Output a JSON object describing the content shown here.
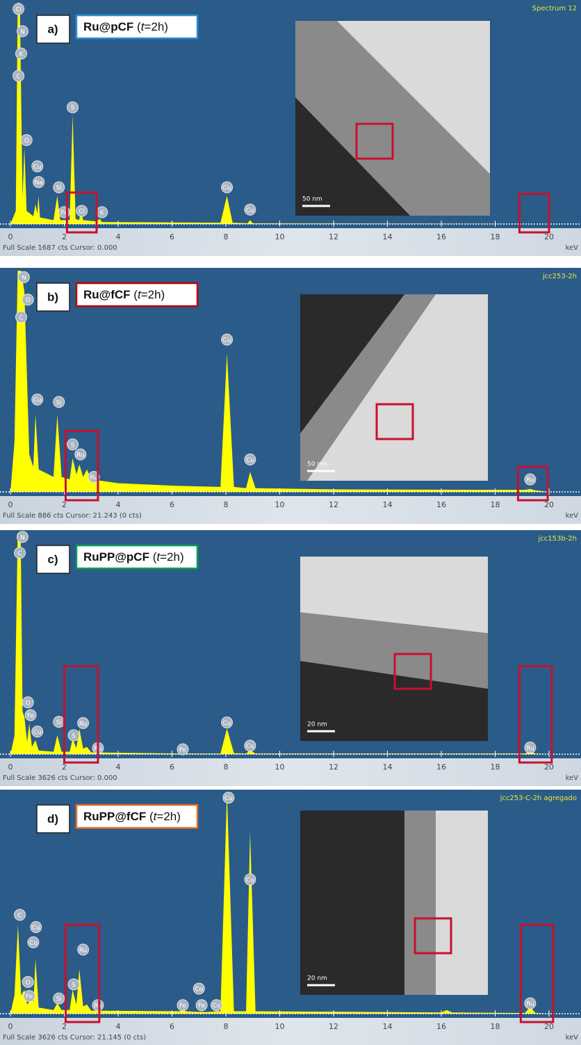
{
  "chart_data": [
    {
      "type": "area",
      "label": "a)",
      "sample": "Ru@pCF",
      "condition": [
        "(",
        "t",
        "=2h)"
      ],
      "box_color": "#2e8fd3",
      "spectrum_name": "Spectrum 12",
      "footer": "Full Scale 1687 cts Cursor: 0.000",
      "x_unit": "keV",
      "inset_scale": "50 nm",
      "xlim": [
        0,
        21.2
      ],
      "ylim": [
        0,
        1687
      ],
      "xticks": [
        0,
        2,
        4,
        6,
        8,
        10,
        12,
        14,
        16,
        18,
        20
      ],
      "color": "#ffff00",
      "x": [
        0,
        0.2,
        0.27,
        0.35,
        0.45,
        0.52,
        0.6,
        0.85,
        0.93,
        1.0,
        1.04,
        1.1,
        1.6,
        1.74,
        1.85,
        2.2,
        2.31,
        2.42,
        2.55,
        2.62,
        2.7,
        3.2,
        3.31,
        3.4,
        7.8,
        8.04,
        8.25,
        8.8,
        8.9,
        9.0,
        20
      ],
      "values": [
        0,
        100,
        1687,
        1687,
        200,
        580,
        100,
        60,
        150,
        80,
        215,
        50,
        30,
        215,
        30,
        30,
        835,
        40,
        30,
        100,
        30,
        20,
        40,
        15,
        10,
        215,
        10,
        5,
        30,
        5,
        0
      ],
      "annotations": [
        {
          "text": "Cl",
          "x": 0.3,
          "y": 1640
        },
        {
          "text": "N",
          "x": 0.45,
          "y": 1470
        },
        {
          "text": "K",
          "x": 0.4,
          "y": 1300
        },
        {
          "text": "C",
          "x": 0.3,
          "y": 1130
        },
        {
          "text": "O",
          "x": 0.6,
          "y": 640
        },
        {
          "text": "Cu",
          "x": 1.0,
          "y": 440
        },
        {
          "text": "Na",
          "x": 1.05,
          "y": 320
        },
        {
          "text": "Si",
          "x": 1.8,
          "y": 280
        },
        {
          "text": "S",
          "x": 2.31,
          "y": 890
        },
        {
          "text": "Fe",
          "x": 2.0,
          "y": 90
        },
        {
          "text": "Cl",
          "x": 2.65,
          "y": 100
        },
        {
          "text": "K",
          "x": 3.4,
          "y": 90
        },
        {
          "text": "Cu",
          "x": 8.04,
          "y": 280
        },
        {
          "text": "Cu",
          "x": 8.9,
          "y": 110
        }
      ],
      "boxes": [
        {
          "x0": 2.1,
          "x1": 3.2,
          "ytop": 240
        },
        {
          "x0": 18.9,
          "x1": 20.0,
          "ytop": 230
        }
      ]
    },
    {
      "type": "area",
      "label": "b)",
      "sample": "Ru@fCF",
      "condition": [
        "(",
        "t",
        "=2h)"
      ],
      "box_color": "#c00000",
      "spectrum_name": "jcc253-2h",
      "footer": "Full Scale 886 cts Cursor: 21.243  (0 cts)",
      "x_unit": "keV",
      "inset_scale": "50 nm",
      "xlim": [
        0,
        21.2
      ],
      "ylim": [
        0,
        886
      ],
      "xticks": [
        0,
        2,
        4,
        6,
        8,
        10,
        12,
        14,
        16,
        18,
        20
      ],
      "color": "#ffff00",
      "x": [
        0,
        0.15,
        0.27,
        0.4,
        0.52,
        0.7,
        0.85,
        0.93,
        1.05,
        1.6,
        1.74,
        1.9,
        2.2,
        2.31,
        2.45,
        2.56,
        2.7,
        2.84,
        3.0,
        4,
        6,
        7.8,
        8.04,
        8.3,
        8.75,
        8.9,
        9.1,
        12,
        19.1,
        19.3,
        19.5,
        20
      ],
      "values": [
        0,
        200,
        886,
        886,
        800,
        150,
        100,
        310,
        90,
        60,
        310,
        60,
        50,
        135,
        70,
        110,
        60,
        90,
        50,
        35,
        25,
        20,
        555,
        20,
        15,
        80,
        15,
        10,
        8,
        12,
        6,
        0
      ],
      "annotations": [
        {
          "text": "N",
          "x": 0.5,
          "y": 860
        },
        {
          "text": "O",
          "x": 0.65,
          "y": 770
        },
        {
          "text": "C",
          "x": 0.4,
          "y": 700
        },
        {
          "text": "Cu",
          "x": 1.0,
          "y": 370
        },
        {
          "text": "Si",
          "x": 1.8,
          "y": 360
        },
        {
          "text": "S",
          "x": 2.31,
          "y": 190
        },
        {
          "text": "Ru",
          "x": 2.6,
          "y": 150
        },
        {
          "text": "Ru",
          "x": 3.1,
          "y": 60
        },
        {
          "text": "Cu",
          "x": 8.04,
          "y": 610
        },
        {
          "text": "Cu",
          "x": 8.9,
          "y": 130
        },
        {
          "text": "Ru",
          "x": 19.3,
          "y": 50
        }
      ],
      "boxes": [
        {
          "x0": 2.05,
          "x1": 3.25,
          "ytop": 244
        },
        {
          "x0": 18.85,
          "x1": 19.95,
          "ytop": 100
        }
      ]
    },
    {
      "type": "area",
      "label": "c)",
      "sample": "RuPP@pCF",
      "condition": [
        "(",
        "t",
        "=2h)"
      ],
      "box_color": "#00a050",
      "spectrum_name": "jcc153b-2h",
      "footer": "Full Scale 3626 cts Cursor: 0.000",
      "x_unit": "keV",
      "inset_scale": "20 nm",
      "xlim": [
        0,
        21.2
      ],
      "ylim": [
        0,
        3626
      ],
      "xticks": [
        0,
        2,
        4,
        6,
        8,
        10,
        12,
        14,
        16,
        18,
        20
      ],
      "color": "#ffff00",
      "x": [
        0,
        0.15,
        0.27,
        0.38,
        0.45,
        0.52,
        0.62,
        0.7,
        0.8,
        0.93,
        1.05,
        1.6,
        1.74,
        1.9,
        2.2,
        2.31,
        2.45,
        2.56,
        2.7,
        2.84,
        3.0,
        6.3,
        6.4,
        6.5,
        7.8,
        8.04,
        8.3,
        8.75,
        8.9,
        9.1,
        19.1,
        19.3,
        19.5,
        20
      ],
      "values": [
        0,
        300,
        3626,
        3626,
        700,
        610,
        200,
        500,
        120,
        230,
        60,
        40,
        310,
        40,
        40,
        250,
        100,
        420,
        90,
        120,
        30,
        10,
        25,
        10,
        10,
        420,
        15,
        10,
        65,
        10,
        10,
        50,
        8,
        0
      ],
      "annotations": [
        {
          "text": "N",
          "x": 0.45,
          "y": 3560
        },
        {
          "text": "C",
          "x": 0.35,
          "y": 3300
        },
        {
          "text": "O",
          "x": 0.65,
          "y": 850
        },
        {
          "text": "Fe",
          "x": 0.75,
          "y": 640
        },
        {
          "text": "Cu",
          "x": 1.0,
          "y": 370
        },
        {
          "text": "Si",
          "x": 1.8,
          "y": 530
        },
        {
          "text": "Ru",
          "x": 2.7,
          "y": 510
        },
        {
          "text": "S",
          "x": 2.35,
          "y": 310
        },
        {
          "text": "Ru",
          "x": 3.25,
          "y": 100
        },
        {
          "text": "Fe",
          "x": 6.4,
          "y": 80
        },
        {
          "text": "Cu",
          "x": 8.04,
          "y": 520
        },
        {
          "text": "Cu",
          "x": 8.9,
          "y": 140
        },
        {
          "text": "Ru",
          "x": 19.3,
          "y": 110
        }
      ],
      "boxes": [
        {
          "x0": 2.0,
          "x1": 3.25,
          "ytop": 1440
        },
        {
          "x0": 18.9,
          "x1": 20.1,
          "ytop": 1440
        }
      ]
    },
    {
      "type": "area",
      "label": "d)",
      "sample": "RuPP@fCF",
      "condition": [
        "(",
        "t",
        "=2h)"
      ],
      "box_color": "#e07020",
      "spectrum_name": "jcc253-C-2h agregado",
      "footer": "Full Scale 3626 cts Cursor: 21.145  (0 cts)",
      "x_unit": "keV",
      "inset_scale": "20 nm",
      "xlim": [
        0,
        21.2
      ],
      "ylim": [
        0,
        3626
      ],
      "xticks": [
        0,
        2,
        4,
        6,
        8,
        10,
        12,
        14,
        16,
        18,
        20
      ],
      "color": "#ffff00",
      "x": [
        0,
        0.15,
        0.28,
        0.4,
        0.52,
        0.62,
        0.7,
        0.78,
        0.86,
        0.93,
        1.05,
        1.6,
        1.74,
        1.9,
        2.2,
        2.31,
        2.45,
        2.56,
        2.7,
        2.84,
        3.0,
        6.3,
        6.4,
        6.5,
        6.93,
        7.06,
        7.3,
        7.65,
        7.8,
        8.04,
        8.3,
        8.75,
        8.9,
        9.1,
        16.0,
        16.2,
        16.4,
        19.1,
        19.3,
        19.5,
        20
      ],
      "values": [
        0,
        300,
        1460,
        300,
        390,
        150,
        200,
        250,
        200,
        900,
        100,
        60,
        170,
        60,
        60,
        390,
        150,
        730,
        120,
        150,
        50,
        40,
        90,
        40,
        30,
        30,
        25,
        40,
        40,
        3626,
        40,
        40,
        2984,
        40,
        20,
        60,
        20,
        10,
        110,
        10,
        0
      ],
      "annotations": [
        {
          "text": "C",
          "x": 0.35,
          "y": 1620
        },
        {
          "text": "Cu",
          "x": 0.95,
          "y": 1420
        },
        {
          "text": "Co",
          "x": 0.85,
          "y": 1170
        },
        {
          "text": "O",
          "x": 0.65,
          "y": 520
        },
        {
          "text": "Fe",
          "x": 0.7,
          "y": 290
        },
        {
          "text": "Si",
          "x": 1.8,
          "y": 250
        },
        {
          "text": "Ru",
          "x": 2.7,
          "y": 1050
        },
        {
          "text": "S",
          "x": 2.35,
          "y": 480
        },
        {
          "text": "Ru",
          "x": 3.25,
          "y": 140
        },
        {
          "text": "Fe",
          "x": 6.4,
          "y": 140
        },
        {
          "text": "Co",
          "x": 7.0,
          "y": 410
        },
        {
          "text": "Fe",
          "x": 7.1,
          "y": 140
        },
        {
          "text": "Co",
          "x": 7.65,
          "y": 140
        },
        {
          "text": "Cu",
          "x": 8.1,
          "y": 3540
        },
        {
          "text": "Cu",
          "x": 8.9,
          "y": 2200
        },
        {
          "text": "Ru",
          "x": 19.3,
          "y": 170
        }
      ],
      "boxes": [
        {
          "x0": 2.05,
          "x1": 3.3,
          "ytop": 1460
        },
        {
          "x0": 18.95,
          "x1": 20.15,
          "ytop": 1460
        }
      ]
    }
  ]
}
